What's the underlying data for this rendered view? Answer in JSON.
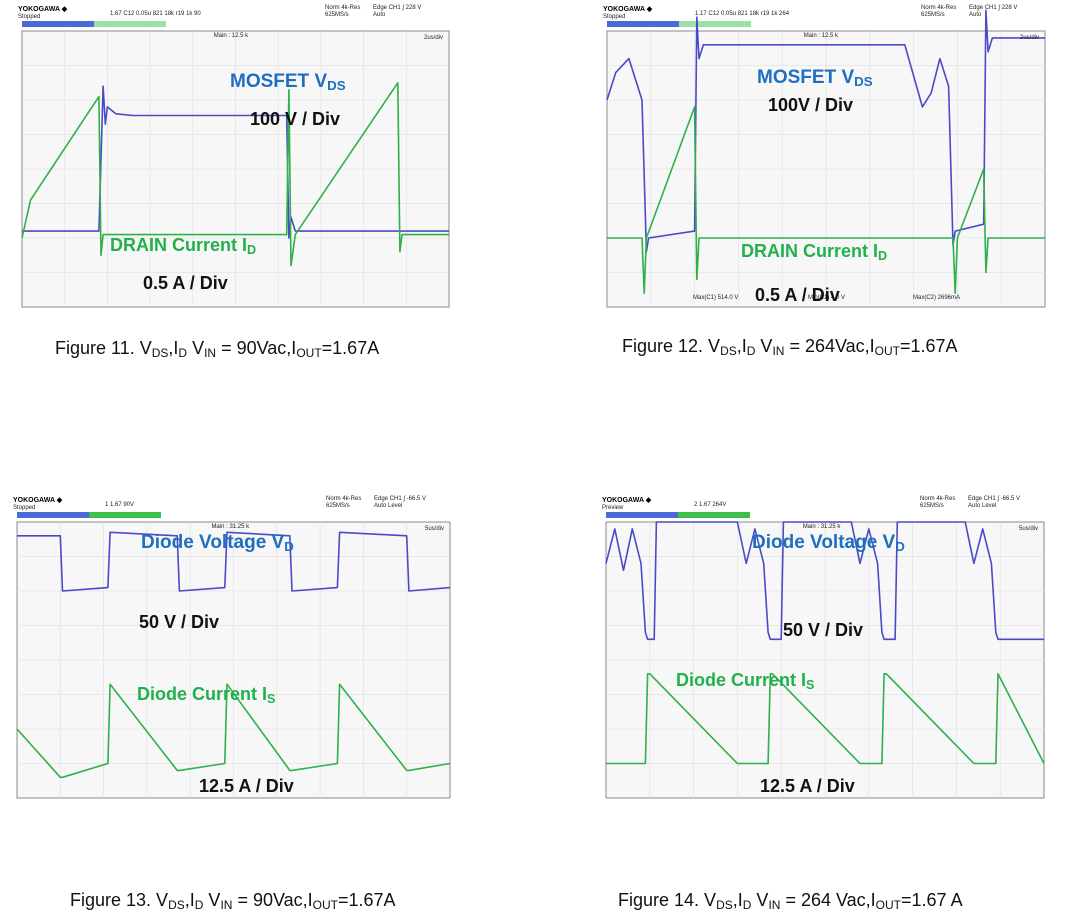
{
  "panels": [
    {
      "id": "fig11",
      "brand": "YOKOGAWA ◆",
      "run_state": "Stopped",
      "header_mid": "1.67  C12 0.05u 821 18k r19 1k 90",
      "header_right_1": "Norm 4k-Res",
      "header_right_2": "625MS/s",
      "header_right_3": "Edge CH1 ∫ 228 V",
      "header_right_4": "Auto",
      "timebase": "2us/div",
      "main_label": "Main : 12.5 k",
      "annotations": [
        {
          "text": "MOSFET V",
          "sub": "DS",
          "color": "blue"
        },
        {
          "text": "100 V / Div",
          "sub": "",
          "color": "black"
        },
        {
          "text": "DRAIN Current I",
          "sub": "D",
          "color": "green"
        },
        {
          "text": "0.5 A / Div",
          "sub": "",
          "color": "black"
        }
      ],
      "caption": {
        "t1": "Figure 11. V",
        "s1": "DS",
        "t2": ",I",
        "s2": "D",
        "t3": " V",
        "s3": "IN",
        "t4": " = 90Vac,I",
        "s4": "OUT",
        "t5": "=1.67A"
      }
    },
    {
      "id": "fig12",
      "brand": "YOKOGAWA ◆",
      "run_state": "Stopped",
      "header_mid": "1.17  C12 0.05u 821 18k r19 1k 264",
      "header_right_1": "Norm 4k-Res",
      "header_right_2": "625MS/s",
      "header_right_3": "Edge CH1 ∫ 228 V",
      "header_right_4": "Auto",
      "timebase": "2us/div",
      "main_label": "Main : 12.5 k",
      "meas_1": "Max(C1)  514.0 V",
      "meas_2": "Min(C1)  4.0 V",
      "meas_3": "Max(C2)  2696mA",
      "annotations": [
        {
          "text": "MOSFET V",
          "sub": "DS",
          "color": "blue"
        },
        {
          "text": "100V / Div",
          "sub": "",
          "color": "black"
        },
        {
          "text": "DRAIN Current I",
          "sub": "D",
          "color": "green"
        },
        {
          "text": "0.5 A / Div",
          "sub": "",
          "color": "black"
        }
      ],
      "caption": {
        "t1": "Figure 12. V",
        "s1": "DS",
        "t2": ",I",
        "s2": "D",
        "t3": " V",
        "s3": "IN",
        "t4": " = 264Vac,I",
        "s4": "OUT",
        "t5": "=1.67A"
      }
    },
    {
      "id": "fig13",
      "brand": "YOKOGAWA ◆",
      "run_state": "Stopped",
      "header_mid": "1   1.67 90V",
      "header_right_1": "Norm 4k-Res",
      "header_right_2": "625MS/s",
      "header_right_3": "Edge CH1 ∫ -66.5 V",
      "header_right_4": "Auto Level",
      "timebase": "5us/div",
      "main_label": "Main : 31.25 k",
      "annotations": [
        {
          "text": "Diode Voltage V",
          "sub": "D",
          "color": "blue"
        },
        {
          "text": "50 V / Div",
          "sub": "",
          "color": "black"
        },
        {
          "text": "Diode Current I",
          "sub": "S",
          "color": "green"
        },
        {
          "text": "12.5 A / Div",
          "sub": "",
          "color": "black"
        }
      ],
      "caption": {
        "t1": "Figure 13. V",
        "s1": "DS",
        "t2": ",I",
        "s2": "D",
        "t3": " V",
        "s3": "IN",
        "t4": " = 90Vac,I",
        "s4": "OUT",
        "t5": "=1.67A"
      }
    },
    {
      "id": "fig14",
      "brand": "YOKOGAWA ◆",
      "run_state": "Preview",
      "header_mid": "2   1.67 264V",
      "header_right_1": "Norm 4k-Res",
      "header_right_2": "625MS/s",
      "header_right_3": "Edge CH1 ∫ -66.5 V",
      "header_right_4": "Auto Level",
      "timebase": "5us/div",
      "main_label": "Main : 31.25 k",
      "annotations": [
        {
          "text": "Diode Voltage V",
          "sub": "D",
          "color": "blue"
        },
        {
          "text": "50 V / Div",
          "sub": "",
          "color": "black"
        },
        {
          "text": "Diode Current I",
          "sub": "S",
          "color": "green"
        },
        {
          "text": "12.5 A / Div",
          "sub": "",
          "color": "black"
        }
      ],
      "caption": {
        "t1": "Figure 14. V",
        "s1": "DS",
        "t2": ",I",
        "s2": "D",
        "t3": " V",
        "s3": "IN",
        "t4": " = 264 Vac,I",
        "s4": "OUT",
        "t5": "=1.67 A"
      }
    }
  ],
  "chart_data": [
    {
      "type": "line",
      "title": "Figure 11",
      "series": [
        {
          "name": "MOSFET VDS",
          "color": "#4a4ac8",
          "x": [
            0,
            0.18,
            0.19,
            0.195,
            0.2,
            0.22,
            0.26,
            0.62,
            0.625,
            0.63,
            0.64,
            0.66,
            1.0
          ],
          "y": [
            2.2,
            2.2,
            6.4,
            5.3,
            5.8,
            5.6,
            5.55,
            5.55,
            2.0,
            2.6,
            2.2,
            2.2,
            2.2
          ]
        },
        {
          "name": "DRAIN Current ID",
          "color": "#2fb04a",
          "x": [
            0,
            0.02,
            0.18,
            0.185,
            0.19,
            0.62,
            0.625,
            0.63,
            0.64,
            0.88,
            0.885,
            0.89,
            1.0
          ],
          "y": [
            2.0,
            3.1,
            6.1,
            1.5,
            2.1,
            2.1,
            6.3,
            1.2,
            2.1,
            6.5,
            1.6,
            2.1,
            2.1
          ]
        }
      ]
    },
    {
      "type": "line",
      "title": "Figure 12",
      "series": [
        {
          "name": "MOSFET VDS",
          "color": "#4a4ac8",
          "x": [
            0,
            0.02,
            0.05,
            0.08,
            0.09,
            0.095,
            0.2,
            0.205,
            0.21,
            0.22,
            0.68,
            0.72,
            0.74,
            0.76,
            0.78,
            0.79,
            0.795,
            0.86,
            0.865,
            0.87,
            0.88,
            1.0
          ],
          "y": [
            6.0,
            6.8,
            7.2,
            6.0,
            1.6,
            2.0,
            2.2,
            8.4,
            7.2,
            7.6,
            7.6,
            5.8,
            6.2,
            7.2,
            6.4,
            1.8,
            2.2,
            2.4,
            8.6,
            7.4,
            7.8,
            7.8
          ]
        },
        {
          "name": "DRAIN Current ID",
          "color": "#2fb04a",
          "x": [
            0,
            0.08,
            0.085,
            0.09,
            0.2,
            0.205,
            0.21,
            0.79,
            0.795,
            0.8,
            0.86,
            0.865,
            0.87,
            1.0
          ],
          "y": [
            2.0,
            2.0,
            0.4,
            2.0,
            5.8,
            0.8,
            2.0,
            2.0,
            0.4,
            2.0,
            4.0,
            1.0,
            2.0,
            2.0
          ]
        }
      ]
    },
    {
      "type": "line",
      "title": "Figure 13",
      "series": [
        {
          "name": "Diode Voltage VD",
          "color": "#4a4ac8",
          "x": [
            0,
            0.1,
            0.105,
            0.21,
            0.215,
            0.37,
            0.375,
            0.48,
            0.485,
            0.63,
            0.635,
            0.74,
            0.745,
            0.9,
            0.905,
            1.0
          ],
          "y": [
            7.6,
            7.6,
            6.0,
            6.1,
            7.7,
            7.6,
            6.0,
            6.1,
            7.7,
            7.6,
            6.0,
            6.1,
            7.7,
            7.6,
            6.0,
            6.1
          ]
        },
        {
          "name": "Diode Current IS",
          "color": "#2fb04a",
          "x": [
            0,
            0.1,
            0.105,
            0.21,
            0.215,
            0.37,
            0.375,
            0.48,
            0.485,
            0.63,
            0.635,
            0.74,
            0.745,
            0.9,
            0.905,
            1.0
          ],
          "y": [
            2.0,
            0.6,
            0.6,
            1.0,
            3.3,
            0.8,
            0.8,
            1.0,
            3.3,
            0.8,
            0.8,
            1.0,
            3.3,
            0.8,
            0.8,
            1.0
          ]
        }
      ]
    },
    {
      "type": "line",
      "title": "Figure 14",
      "series": [
        {
          "name": "Diode Voltage VD",
          "color": "#4a4ac8",
          "x": [
            0,
            0.02,
            0.04,
            0.06,
            0.08,
            0.09,
            0.095,
            0.11,
            0.115,
            0.3,
            0.32,
            0.34,
            0.36,
            0.37,
            0.375,
            0.4,
            0.405,
            0.56,
            0.58,
            0.6,
            0.62,
            0.63,
            0.635,
            0.66,
            0.665,
            0.82,
            0.84,
            0.86,
            0.88,
            0.89,
            0.895,
            1.0
          ],
          "y": [
            6.8,
            7.8,
            6.6,
            7.8,
            6.8,
            4.8,
            4.6,
            4.6,
            8.0,
            8.0,
            6.8,
            7.8,
            6.8,
            4.8,
            4.6,
            4.6,
            8.0,
            8.0,
            6.8,
            7.8,
            6.8,
            4.8,
            4.6,
            4.6,
            8.0,
            8.0,
            6.8,
            7.8,
            6.8,
            4.8,
            4.6,
            4.6
          ]
        },
        {
          "name": "Diode Current IS",
          "color": "#2fb04a",
          "x": [
            0,
            0.09,
            0.095,
            0.1,
            0.3,
            0.37,
            0.375,
            0.38,
            0.58,
            0.63,
            0.635,
            0.64,
            0.84,
            0.89,
            0.895,
            1.0
          ],
          "y": [
            1.0,
            1.0,
            3.6,
            3.6,
            1.0,
            1.0,
            3.6,
            3.6,
            1.0,
            1.0,
            3.6,
            3.6,
            1.0,
            1.0,
            3.6,
            1.0
          ]
        }
      ]
    }
  ]
}
